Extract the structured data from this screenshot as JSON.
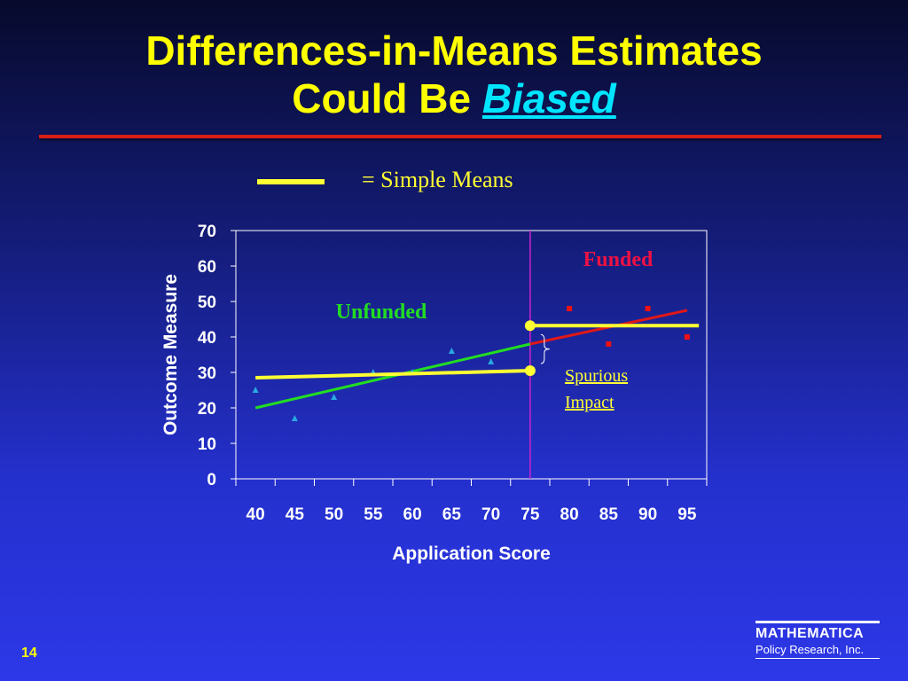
{
  "slide": {
    "title_line1": "Differences-in-Means Estimates",
    "title_line2_prefix": "Could Be",
    "title_line2_emphasis": "Biased",
    "legend_text": "= Simple Means",
    "page_number": "14",
    "logo_name": "MATHEMATICA",
    "logo_sub": "Policy Research, Inc."
  },
  "colors": {
    "title": "#ffff00",
    "emphasis": "#00e5ff",
    "rule": "#d81e14",
    "simple_means": "#ffff33",
    "unfunded_fit": "#22dd22",
    "funded_fit": "#e01818",
    "unfunded_points": "#29a8e0",
    "funded_points": "#ee1111",
    "cutoff": "#cc22cc",
    "unfunded_label": "#22dd22",
    "funded_label": "#ee1144",
    "spurious_label": "#ffff33"
  },
  "chart_data": {
    "type": "scatter",
    "xlabel": "Application Score",
    "ylabel": "Outcome Measure",
    "xlim": [
      37.5,
      97.5
    ],
    "ylim": [
      0,
      70
    ],
    "x_ticks": [
      40,
      45,
      50,
      55,
      60,
      65,
      70,
      75,
      80,
      85,
      90,
      95
    ],
    "y_ticks": [
      0,
      10,
      20,
      30,
      40,
      50,
      60,
      70
    ],
    "grid": false,
    "cutoff_x": 75,
    "series": [
      {
        "marker": "triangle",
        "points": [
          [
            40,
            25
          ],
          [
            45,
            17
          ],
          [
            50,
            23
          ],
          [
            55,
            30
          ],
          [
            60,
            30
          ],
          [
            65,
            36
          ],
          [
            70,
            33
          ]
        ]
      },
      {
        "marker": "square",
        "points": [
          [
            80,
            48
          ],
          [
            85,
            38
          ],
          [
            90,
            48
          ],
          [
            95,
            40
          ]
        ]
      }
    ],
    "fit_lines": [
      {
        "group": "unfunded",
        "from": [
          40,
          20
        ],
        "to": [
          75,
          38
        ]
      },
      {
        "group": "funded",
        "from": [
          75,
          38
        ],
        "to": [
          95,
          47.5
        ]
      }
    ],
    "mean_lines": [
      {
        "group": "unfunded",
        "from": [
          40,
          28.5
        ],
        "to": [
          75,
          30.5
        ]
      },
      {
        "group": "funded",
        "from": [
          75,
          43.2
        ],
        "to": [
          96.5,
          43.2
        ]
      }
    ],
    "annotations": {
      "unfunded": "Unfunded",
      "funded": "Funded",
      "spurious_line1": "Spurious",
      "spurious_line2": "Impact"
    }
  }
}
